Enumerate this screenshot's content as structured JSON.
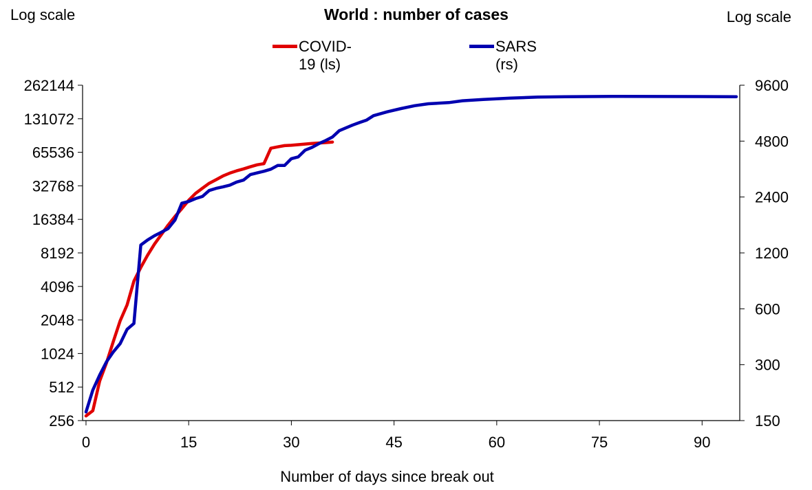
{
  "chart_data": {
    "type": "line",
    "title": "World : number of cases",
    "xlabel": "Number of days since break out",
    "ylabel_left": "Log scale",
    "ylabel_right": "Log scale",
    "xlim": [
      -0.5,
      95.5
    ],
    "xticks": [
      0,
      15,
      30,
      45,
      60,
      75,
      90
    ],
    "left_axis": {
      "scale": "log2",
      "ylim": [
        256,
        262144
      ],
      "ticks": [
        256,
        512,
        1024,
        2048,
        4096,
        8192,
        16384,
        32768,
        65536,
        131072,
        262144
      ]
    },
    "right_axis": {
      "scale": "log2",
      "ylim": [
        150,
        9600
      ],
      "ticks": [
        150,
        300,
        600,
        1200,
        2400,
        4800,
        9600
      ]
    },
    "legend_position": "top-center",
    "grid": false,
    "series": [
      {
        "name": "COVID-19 (ls)",
        "axis": "left",
        "color": "#e00000",
        "x": [
          0,
          1,
          2,
          3,
          4,
          5,
          6,
          7,
          8,
          9,
          10,
          11,
          12,
          13,
          14,
          15,
          16,
          17,
          18,
          19,
          20,
          21,
          22,
          23,
          24,
          25,
          26,
          27,
          28,
          29,
          30,
          31,
          32,
          33,
          34,
          35,
          36
        ],
        "y": [
          282,
          314,
          581,
          846,
          1320,
          2019,
          2800,
          4579,
          6061,
          7816,
          9821,
          11948,
          14551,
          17389,
          20438,
          24324,
          28018,
          31161,
          34546,
          37198,
          40171,
          42638,
          44653,
          46472,
          48548,
          50580,
          51857,
          71226,
          73332,
          75184,
          75700,
          76677,
          77673,
          78651,
          79407,
          80088,
          80995
        ]
      },
      {
        "name": "SARS (rs)",
        "axis": "right",
        "color": "#0000b0",
        "x": [
          0,
          1,
          2,
          3,
          4,
          5,
          6,
          7,
          8,
          9,
          10,
          11,
          12,
          13,
          14,
          15,
          16,
          17,
          18,
          19,
          20,
          21,
          22,
          23,
          24,
          25,
          26,
          27,
          28,
          29,
          30,
          31,
          32,
          33,
          34,
          35,
          36,
          37,
          38,
          39,
          40,
          41,
          42,
          44,
          46,
          48,
          50,
          53,
          55,
          58,
          62,
          66,
          70,
          78,
          95
        ],
        "y": [
          167,
          219,
          264,
          311,
          352,
          390,
          465,
          500,
          1323,
          1408,
          1485,
          1550,
          1622,
          1804,
          2223,
          2270,
          2353,
          2416,
          2601,
          2671,
          2722,
          2781,
          2890,
          2960,
          3169,
          3235,
          3303,
          3389,
          3547,
          3547,
          3861,
          3947,
          4288,
          4439,
          4649,
          4836,
          5050,
          5462,
          5663,
          5865,
          6054,
          6234,
          6583,
          6903,
          7183,
          7446,
          7628,
          7739,
          7920,
          8046,
          8184,
          8282,
          8320,
          8360,
          8330
        ]
      }
    ]
  }
}
